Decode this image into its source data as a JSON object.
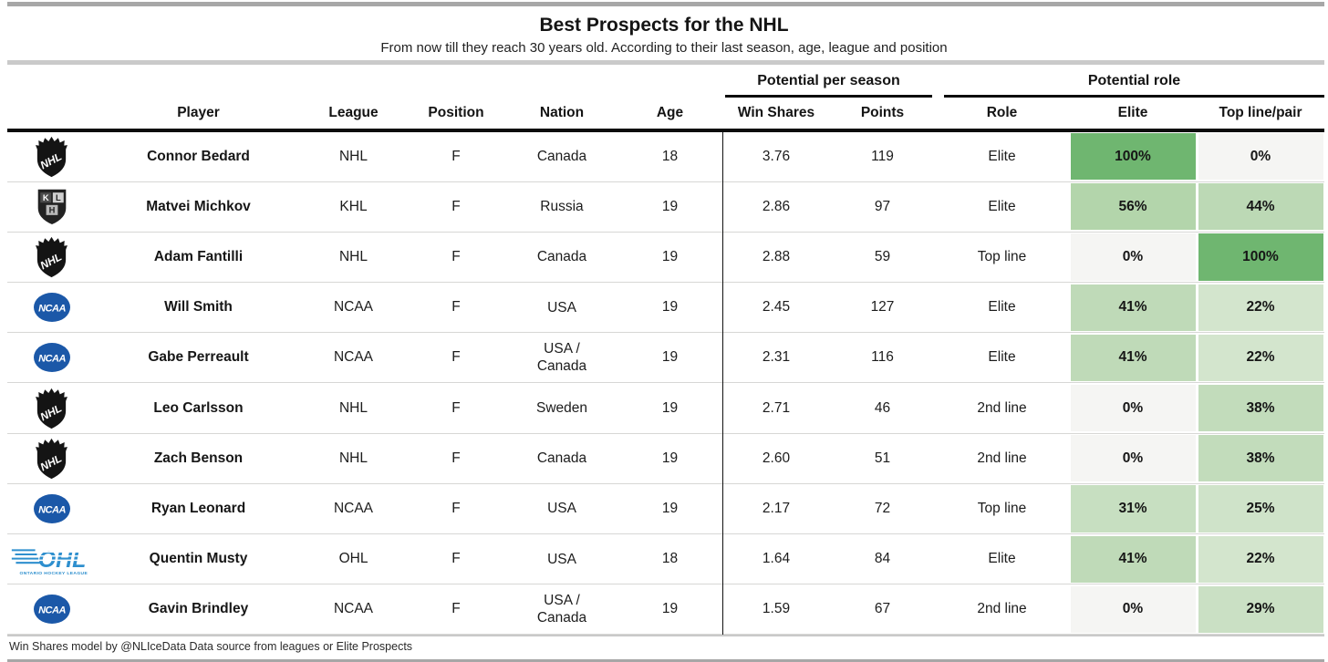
{
  "header": {
    "title": "Best Prospects for the NHL",
    "subtitle": "From now till they reach 30 years old. According to their last season, age, league and position"
  },
  "table": {
    "group_headers": [
      {
        "label": "Potential per season"
      },
      {
        "label": "Potential role"
      }
    ],
    "columns": [
      "Player",
      "League",
      "Position",
      "Nation",
      "Age",
      "Win Shares",
      "Points",
      "Role",
      "Elite",
      "Top line/pair"
    ],
    "rows": [
      {
        "logo": "nhl",
        "player": "Connor Bedard",
        "league": "NHL",
        "position": "F",
        "nation": "Canada",
        "age": "18",
        "win_shares": "3.76",
        "points": "119",
        "role": "Elite",
        "elite_pct": "100%",
        "elite_color": "#6fb670",
        "topline_pct": "0%",
        "topline_color": "#f5f5f3"
      },
      {
        "logo": "khl",
        "player": "Matvei Michkov",
        "league": "KHL",
        "position": "F",
        "nation": "Russia",
        "age": "19",
        "win_shares": "2.86",
        "points": "97",
        "role": "Elite",
        "elite_pct": "56%",
        "elite_color": "#b3d5ab",
        "topline_pct": "44%",
        "topline_color": "#bcd9b5"
      },
      {
        "logo": "nhl",
        "player": "Adam Fantilli",
        "league": "NHL",
        "position": "F",
        "nation": "Canada",
        "age": "19",
        "win_shares": "2.88",
        "points": "59",
        "role": "Top line",
        "elite_pct": "0%",
        "elite_color": "#f5f5f3",
        "topline_pct": "100%",
        "topline_color": "#6fb670"
      },
      {
        "logo": "ncaa",
        "player": "Will Smith",
        "league": "NCAA",
        "position": "F",
        "nation": "USA",
        "age": "19",
        "win_shares": "2.45",
        "points": "127",
        "role": "Elite",
        "elite_pct": "41%",
        "elite_color": "#bfdab8",
        "topline_pct": "22%",
        "topline_color": "#d3e5cd"
      },
      {
        "logo": "ncaa",
        "player": "Gabe Perreault",
        "league": "NCAA",
        "position": "F",
        "nation": "USA /\nCanada",
        "age": "19",
        "win_shares": "2.31",
        "points": "116",
        "role": "Elite",
        "elite_pct": "41%",
        "elite_color": "#bfdab8",
        "topline_pct": "22%",
        "topline_color": "#d3e5cd"
      },
      {
        "logo": "nhl",
        "player": "Leo Carlsson",
        "league": "NHL",
        "position": "F",
        "nation": "Sweden",
        "age": "19",
        "win_shares": "2.71",
        "points": "46",
        "role": "2nd line",
        "elite_pct": "0%",
        "elite_color": "#f5f5f3",
        "topline_pct": "38%",
        "topline_color": "#c2dcbb"
      },
      {
        "logo": "nhl",
        "player": "Zach Benson",
        "league": "NHL",
        "position": "F",
        "nation": "Canada",
        "age": "19",
        "win_shares": "2.60",
        "points": "51",
        "role": "2nd line",
        "elite_pct": "0%",
        "elite_color": "#f5f5f3",
        "topline_pct": "38%",
        "topline_color": "#c2dcbb"
      },
      {
        "logo": "ncaa",
        "player": "Ryan Leonard",
        "league": "NCAA",
        "position": "F",
        "nation": "USA",
        "age": "19",
        "win_shares": "2.17",
        "points": "72",
        "role": "Top line",
        "elite_pct": "31%",
        "elite_color": "#c7dfc1",
        "topline_pct": "25%",
        "topline_color": "#cfe3c9"
      },
      {
        "logo": "ohl",
        "player": "Quentin Musty",
        "league": "OHL",
        "position": "F",
        "nation": "USA",
        "age": "18",
        "win_shares": "1.64",
        "points": "84",
        "role": "Elite",
        "elite_pct": "41%",
        "elite_color": "#bfdab8",
        "topline_pct": "22%",
        "topline_color": "#d3e5cd"
      },
      {
        "logo": "ncaa",
        "player": "Gavin Brindley",
        "league": "NCAA",
        "position": "F",
        "nation": "USA /\nCanada",
        "age": "19",
        "win_shares": "1.59",
        "points": "67",
        "role": "2nd line",
        "elite_pct": "0%",
        "elite_color": "#f5f5f3",
        "topline_pct": "29%",
        "topline_color": "#cae0c4"
      }
    ]
  },
  "footer": {
    "note": "Win Shares model by @NLIceData Data source from leagues or Elite Prospects"
  },
  "icons": {
    "nhl": "nhl-league-logo-icon",
    "khl": "khl-league-logo-icon",
    "ncaa": "ncaa-league-logo-icon",
    "ohl": "ohl-league-logo-icon"
  },
  "colors": {
    "green_max": "#6fb670",
    "neutral_zero": "#f5f5f3",
    "rule_black": "#0c0c0c",
    "bar_dark_gray": "#a7a7a7",
    "bar_light_gray": "#cacaca",
    "row_separator": "#d7d7d5",
    "ncaa_blue": "#1b58a8",
    "ohl_blue": "#2e8fce"
  },
  "chart_data": {
    "type": "table",
    "title": "Best Prospects for the NHL",
    "subtitle": "From now till they reach 30 years old. According to their last season, age, league and position",
    "column_groups": [
      {
        "label": "Potential per season",
        "columns": [
          "Win Shares",
          "Points"
        ]
      },
      {
        "label": "Potential role",
        "columns": [
          "Role",
          "Elite",
          "Top line/pair"
        ]
      }
    ],
    "columns": [
      "Player",
      "League",
      "Position",
      "Nation",
      "Age",
      "Win Shares",
      "Points",
      "Role",
      "Elite",
      "Top line/pair"
    ],
    "rows": [
      [
        "Connor Bedard",
        "NHL",
        "F",
        "Canada",
        18,
        3.76,
        119,
        "Elite",
        "100%",
        "0%"
      ],
      [
        "Matvei Michkov",
        "KHL",
        "F",
        "Russia",
        19,
        2.86,
        97,
        "Elite",
        "56%",
        "44%"
      ],
      [
        "Adam Fantilli",
        "NHL",
        "F",
        "Canada",
        19,
        2.88,
        59,
        "Top line",
        "0%",
        "100%"
      ],
      [
        "Will Smith",
        "NCAA",
        "F",
        "USA",
        19,
        2.45,
        127,
        "Elite",
        "41%",
        "22%"
      ],
      [
        "Gabe Perreault",
        "NCAA",
        "F",
        "USA / Canada",
        19,
        2.31,
        116,
        "Elite",
        "41%",
        "22%"
      ],
      [
        "Leo Carlsson",
        "NHL",
        "F",
        "Sweden",
        19,
        2.71,
        46,
        "2nd line",
        "0%",
        "38%"
      ],
      [
        "Zach Benson",
        "NHL",
        "F",
        "Canada",
        19,
        2.6,
        51,
        "2nd line",
        "0%",
        "38%"
      ],
      [
        "Ryan Leonard",
        "NCAA",
        "F",
        "USA",
        19,
        2.17,
        72,
        "Top line",
        "31%",
        "25%"
      ],
      [
        "Quentin Musty",
        "OHL",
        "F",
        "USA",
        18,
        1.64,
        84,
        "Elite",
        "41%",
        "22%"
      ],
      [
        "Gavin Brindley",
        "NCAA",
        "F",
        "USA / Canada",
        19,
        1.59,
        67,
        "2nd line",
        "0%",
        "29%"
      ]
    ],
    "heatmap_note": "Elite and Top line/pair cells shaded green proportional to percentage (0% = light gray #f5f5f3, 100% = #6fb670)"
  }
}
